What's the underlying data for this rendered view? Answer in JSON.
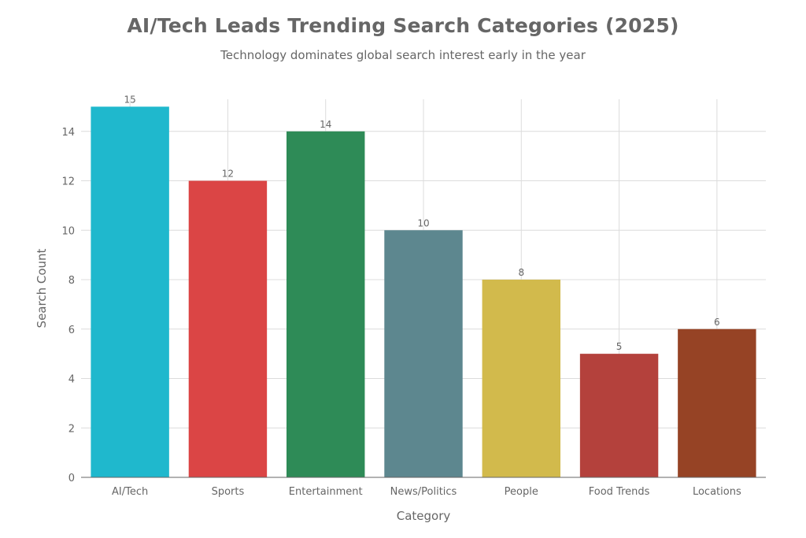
{
  "chart_data": {
    "type": "bar",
    "title": "AI/Tech Leads Trending Search Categories (2025)",
    "subtitle": "Technology dominates global search interest early in the year",
    "xlabel": "Category",
    "ylabel": "Search Count",
    "categories": [
      "AI/Tech",
      "Sports",
      "Entertainment",
      "News/Politics",
      "People",
      "Food Trends",
      "Locations"
    ],
    "values": [
      15,
      12,
      14,
      10,
      8,
      5,
      6
    ],
    "colors": [
      "#1fb8cd",
      "#db4545",
      "#2e8b57",
      "#5d878f",
      "#d2ba4c",
      "#b4413c",
      "#964325"
    ],
    "ylim": [
      0,
      15.3
    ],
    "yticks": [
      0,
      2,
      4,
      6,
      8,
      10,
      12,
      14
    ],
    "grid": true,
    "data_labels": true,
    "legend": "none"
  }
}
